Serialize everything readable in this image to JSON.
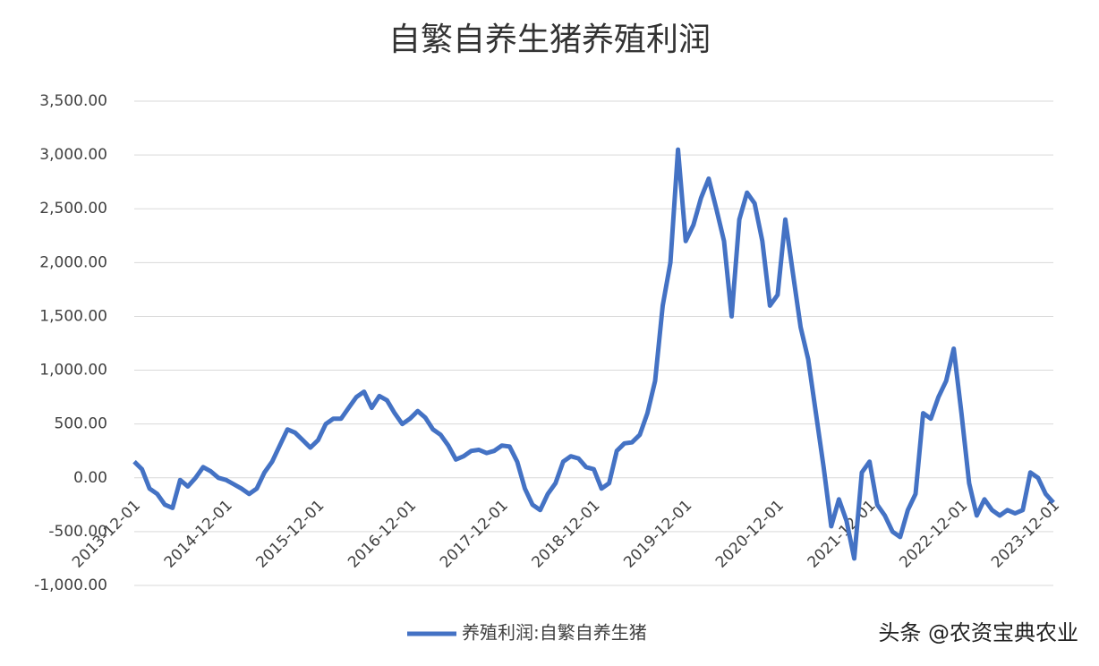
{
  "chart_data": {
    "type": "line",
    "title": "自繁自养生猪养殖利润",
    "categories": [
      "2013-12-01",
      null,
      null,
      null,
      null,
      null,
      null,
      null,
      null,
      null,
      null,
      null,
      "2014-12-01",
      null,
      null,
      null,
      null,
      null,
      null,
      null,
      null,
      null,
      null,
      null,
      "2015-12-01",
      null,
      null,
      null,
      null,
      null,
      null,
      null,
      null,
      null,
      null,
      null,
      "2016-12-01",
      null,
      null,
      null,
      null,
      null,
      null,
      null,
      null,
      null,
      null,
      null,
      "2017-12-01",
      null,
      null,
      null,
      null,
      null,
      null,
      null,
      null,
      null,
      null,
      null,
      "2018-12-01",
      null,
      null,
      null,
      null,
      null,
      null,
      null,
      null,
      null,
      null,
      null,
      "2019-12-01",
      null,
      null,
      null,
      null,
      null,
      null,
      null,
      null,
      null,
      null,
      null,
      "2020-12-01",
      null,
      null,
      null,
      null,
      null,
      null,
      null,
      null,
      null,
      null,
      null,
      "2021-12-01",
      null,
      null,
      null,
      null,
      null,
      null,
      null,
      null,
      null,
      null,
      null,
      "2022-12-01",
      null,
      null,
      null,
      null,
      null,
      null,
      null,
      null,
      null,
      null,
      null,
      "2023-12-01"
    ],
    "series": [
      {
        "name": "养殖利润:自繁自养生猪",
        "color": "#4472c4",
        "values": [
          150,
          80,
          -100,
          -150,
          -250,
          -280,
          -20,
          -80,
          0,
          100,
          60,
          0,
          -20,
          -60,
          -100,
          -150,
          -100,
          50,
          150,
          300,
          450,
          420,
          350,
          280,
          350,
          500,
          550,
          550,
          650,
          750,
          800,
          650,
          760,
          720,
          600,
          500,
          550,
          620,
          560,
          450,
          400,
          300,
          170,
          200,
          250,
          260,
          230,
          250,
          300,
          290,
          150,
          -100,
          -250,
          -300,
          -150,
          -50,
          150,
          200,
          180,
          100,
          80,
          -100,
          -50,
          250,
          320,
          330,
          400,
          600,
          900,
          1600,
          2000,
          3050,
          2200,
          2350,
          2600,
          2780,
          2500,
          2200,
          1500,
          2400,
          2650,
          2550,
          2200,
          1600,
          1700,
          2400,
          1900,
          1400,
          1100,
          600,
          100,
          -450,
          -200,
          -400,
          -750,
          50,
          150,
          -250,
          -350,
          -500,
          -550,
          -300,
          -150,
          600,
          550,
          750,
          900,
          1200,
          600,
          -50,
          -350,
          -200,
          -300,
          -350,
          -300,
          -330,
          -300,
          50,
          0,
          -150,
          -230
        ]
      }
    ],
    "ylim": [
      -1000,
      3500
    ],
    "yticks": [
      {
        "value": -1000,
        "label": "-1,000.00"
      },
      {
        "value": -500,
        "label": "-500.00"
      },
      {
        "value": 0,
        "label": "0.00"
      },
      {
        "value": 500,
        "label": "500.00"
      },
      {
        "value": 1000,
        "label": "1,000.00"
      },
      {
        "value": 1500,
        "label": "1,500.00"
      },
      {
        "value": 2000,
        "label": "2,000.00"
      },
      {
        "value": 2500,
        "label": "2,500.00"
      },
      {
        "value": 3000,
        "label": "3,000.00"
      },
      {
        "value": 3500,
        "label": "3,500.00"
      }
    ],
    "grid": true,
    "legend": "bottom",
    "watermark": "头条 @农资宝典农业"
  }
}
